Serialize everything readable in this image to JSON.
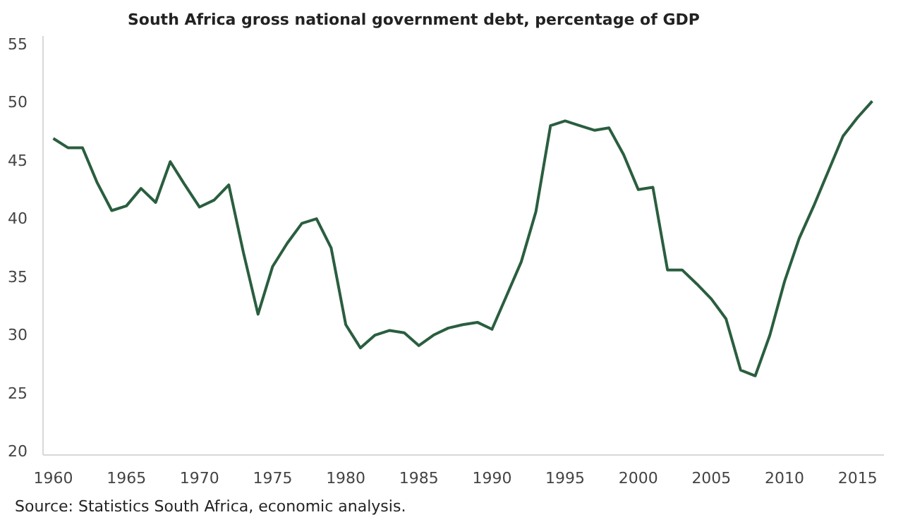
{
  "chart_data": {
    "type": "line",
    "title": "South Africa gross national government debt, percentage of GDP",
    "x": [
      1960,
      1961,
      1962,
      1963,
      1964,
      1965,
      1966,
      1967,
      1968,
      1969,
      1970,
      1971,
      1972,
      1973,
      1974,
      1975,
      1976,
      1977,
      1978,
      1979,
      1980,
      1981,
      1982,
      1983,
      1984,
      1985,
      1986,
      1987,
      1988,
      1989,
      1990,
      1991,
      1992,
      1993,
      1994,
      1995,
      1996,
      1997,
      1998,
      1999,
      2000,
      2001,
      2002,
      2003,
      2004,
      2005,
      2006,
      2007,
      2008,
      2009,
      2010,
      2011,
      2012,
      2013,
      2014,
      2015,
      2016
    ],
    "series": [
      {
        "color": "#2a5e3f",
        "values": [
          46.8,
          46.0,
          46.0,
          43.0,
          40.6,
          41.0,
          42.5,
          41.3,
          44.8,
          42.8,
          40.9,
          41.5,
          42.8,
          37.0,
          31.7,
          35.8,
          37.8,
          39.5,
          39.9,
          37.4,
          30.8,
          28.8,
          29.9,
          30.3,
          30.1,
          29.0,
          29.9,
          30.5,
          30.8,
          31.0,
          30.4,
          33.3,
          36.2,
          40.5,
          47.9,
          48.3,
          47.9,
          47.5,
          47.7,
          45.4,
          42.4,
          42.6,
          35.5,
          35.5,
          34.3,
          33.0,
          31.3,
          26.9,
          26.4,
          29.9,
          34.5,
          38.2,
          41.0,
          44.0,
          47.0,
          48.6,
          50.0
        ]
      }
    ],
    "xlim": [
      1959.3,
      2016.8
    ],
    "ylim": [
      19.6,
      55.6
    ],
    "xticks": [
      1960,
      1965,
      1970,
      1975,
      1980,
      1985,
      1990,
      1995,
      2000,
      2005,
      2010,
      2015
    ],
    "yticks": [
      20,
      25,
      30,
      35,
      40,
      45,
      50,
      55
    ],
    "grid": false,
    "annotations": [
      "Source: Statistics South Africa, economic analysis."
    ]
  }
}
